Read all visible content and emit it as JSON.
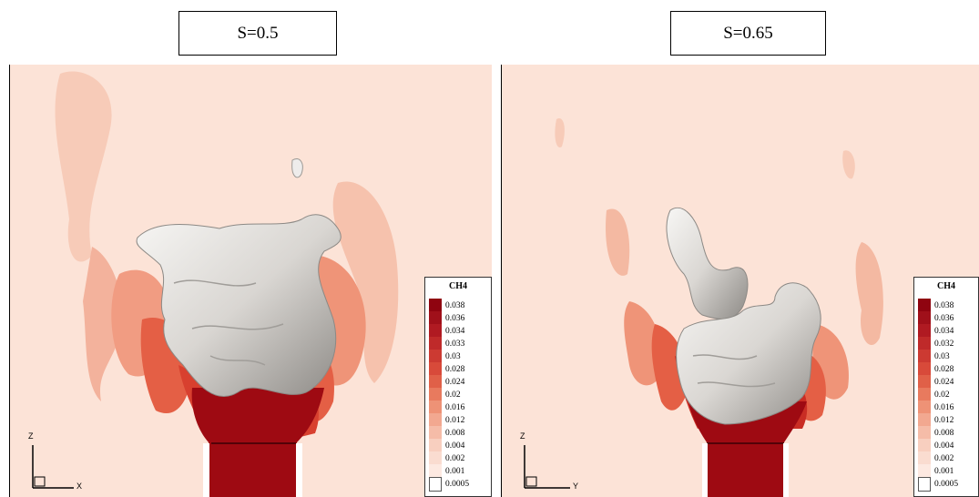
{
  "panels": [
    {
      "title": "S=0.5",
      "legend_title": "CH4",
      "legend_levels": [
        "0.038",
        "0.036",
        "0.034",
        "0.033",
        "0.03",
        "0.028",
        "0.024",
        "0.02",
        "0.016",
        "0.012",
        "0.008",
        "0.004",
        "0.002",
        "0.001",
        "0.0005"
      ],
      "axis_vertical": "Z",
      "axis_horizontal": "X"
    },
    {
      "title": "S=0.65",
      "legend_title": "CH4",
      "legend_levels": [
        "0.038",
        "0.036",
        "0.034",
        "0.032",
        "0.03",
        "0.028",
        "0.024",
        "0.02",
        "0.016",
        "0.012",
        "0.008",
        "0.004",
        "0.002",
        "0.001",
        "0.0005"
      ],
      "axis_vertical": "Z",
      "axis_horizontal": "Y"
    }
  ],
  "colors": {
    "background_field": "#fce3d7",
    "plume_light": "#f6c2ad",
    "plume_mid": "#ef8d72",
    "plume_dark": "#d8402f",
    "jet_core": "#9e0a12",
    "isosurface": "#e9e7e4",
    "isosurface_shadow": "#9c9995",
    "legend_scale": [
      "#8f0410",
      "#a0101a",
      "#b01a22",
      "#bf2a2a",
      "#cc3a32",
      "#d84a3a",
      "#e06048",
      "#e87a5e",
      "#ee9276",
      "#f2a890",
      "#f5bca8",
      "#f8cfbf",
      "#fadcd0",
      "#fde9e1",
      "#ffffff"
    ]
  }
}
